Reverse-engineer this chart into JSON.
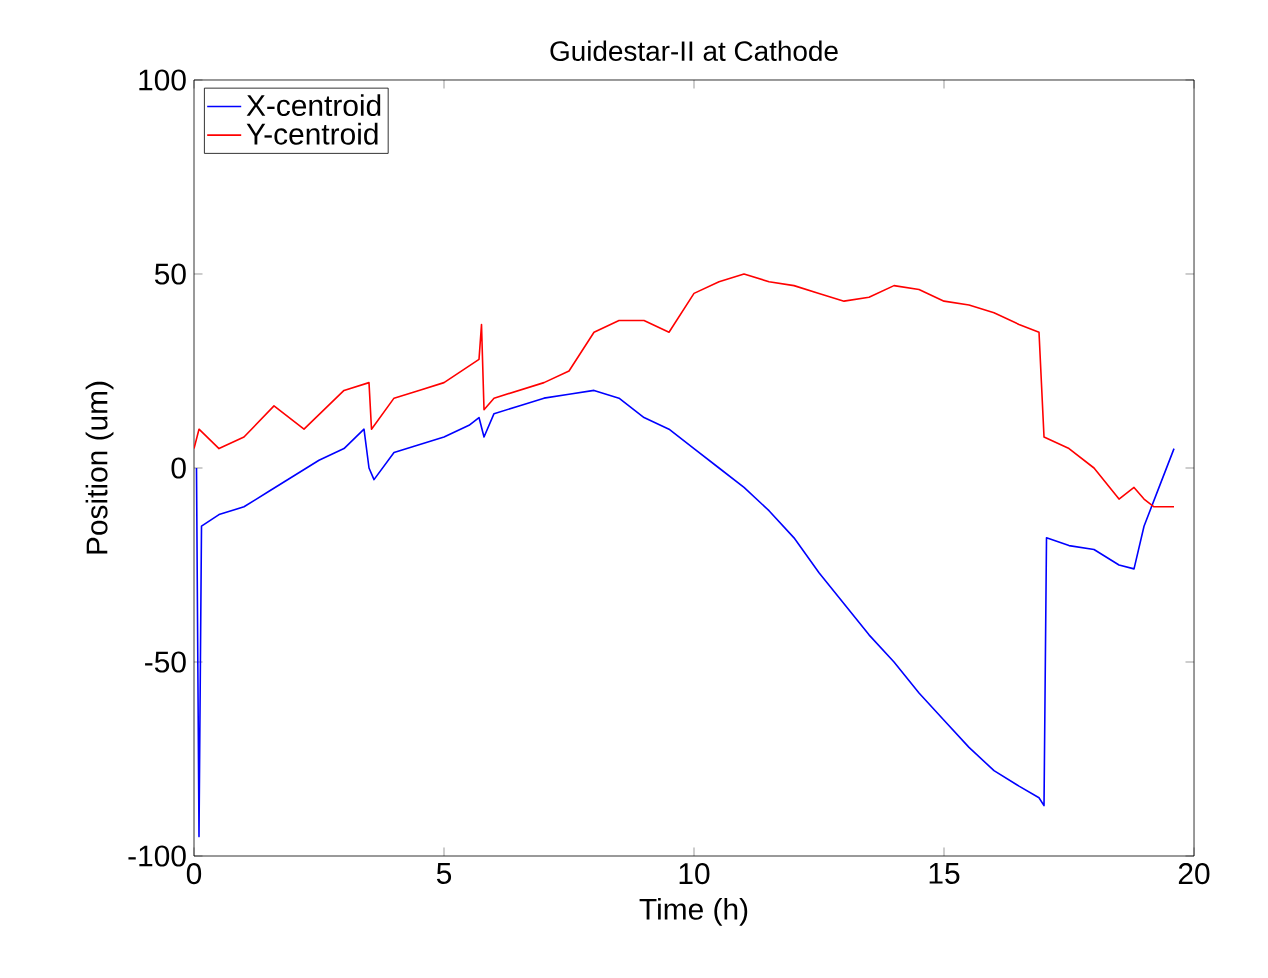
{
  "chart_data": {
    "type": "line",
    "title": "Guidestar-II at Cathode",
    "xlabel": "Time (h)",
    "ylabel": "Position (um)",
    "xlim": [
      0,
      20
    ],
    "ylim": [
      -100,
      100
    ],
    "xticks": [
      0,
      5,
      10,
      15,
      20
    ],
    "yticks": [
      -100,
      -50,
      0,
      50,
      100
    ],
    "grid": false,
    "legend": "top left",
    "series": [
      {
        "name": "X-centroid",
        "color": "#0000ff",
        "x": [
          0.05,
          0.1,
          0.15,
          0.5,
          1,
          1.5,
          2,
          2.5,
          3,
          3.4,
          3.5,
          3.6,
          4,
          4.5,
          5,
          5.5,
          5.7,
          5.8,
          6,
          6.5,
          7,
          7.5,
          8,
          8.5,
          9,
          9.5,
          10,
          10.5,
          11,
          11.5,
          12,
          12.5,
          13,
          13.5,
          14,
          14.5,
          15,
          15.5,
          16,
          16.5,
          16.9,
          17.0,
          17.05,
          17.5,
          18,
          18.5,
          18.8,
          19,
          19.3,
          19.6
        ],
        "values": [
          0,
          -95,
          -15,
          -12,
          -10,
          -6,
          -2,
          2,
          5,
          10,
          0,
          -3,
          4,
          6,
          8,
          11,
          13,
          8,
          14,
          16,
          18,
          19,
          20,
          18,
          13,
          10,
          5,
          0,
          -5,
          -11,
          -18,
          -27,
          -35,
          -43,
          -50,
          -58,
          -65,
          -72,
          -78,
          -82,
          -85,
          -87,
          -18,
          -20,
          -21,
          -25,
          -26,
          -15,
          -5,
          5
        ]
      },
      {
        "name": "Y-centroid",
        "color": "#ff0000",
        "x": [
          0,
          0.1,
          0.5,
          1,
          1.6,
          2.2,
          2.6,
          3,
          3.5,
          3.55,
          4,
          4.5,
          5,
          5.7,
          5.75,
          5.8,
          6,
          7,
          7.5,
          8,
          8.5,
          9,
          9.5,
          10,
          10.5,
          11,
          11.5,
          12,
          12.5,
          13,
          13.5,
          14,
          14.5,
          15,
          15.5,
          16,
          16.5,
          16.9,
          17.0,
          17.5,
          18,
          18.5,
          18.8,
          19,
          19.2,
          19.6
        ],
        "values": [
          5,
          10,
          5,
          8,
          16,
          10,
          15,
          20,
          22,
          10,
          18,
          20,
          22,
          28,
          37,
          15,
          18,
          22,
          25,
          35,
          38,
          38,
          35,
          45,
          48,
          50,
          48,
          47,
          45,
          43,
          44,
          47,
          46,
          43,
          42,
          40,
          37,
          35,
          8,
          5,
          0,
          -8,
          -5,
          -8,
          -10,
          -10
        ]
      }
    ]
  }
}
